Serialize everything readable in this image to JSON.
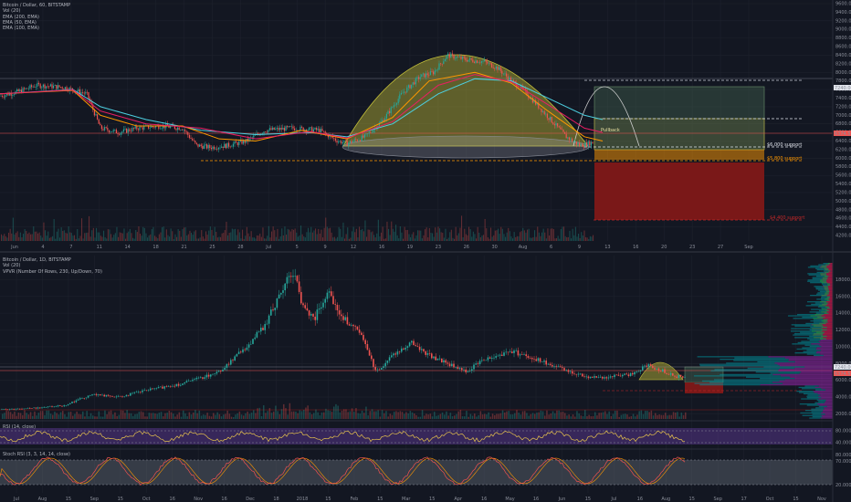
{
  "top_panel": {
    "legend": [
      "Bitcoin / Dollar, 60, BITSTAMP",
      "Vol (20)",
      "EMA (200, EMA)",
      "EMA (50, EMA)",
      "EMA (100, EMA)"
    ],
    "price_axis": [
      "9600.00",
      "9400.00",
      "9200.00",
      "9000.00",
      "8800.00",
      "8600.00",
      "8400.00",
      "8200.00",
      "8000.00",
      "7800.00",
      "7600.00",
      "7400.00",
      "7200.00",
      "7000.00",
      "6800.00",
      "6600.00",
      "6400.00",
      "6200.00",
      "6000.00",
      "5800.00",
      "5600.00",
      "5400.00",
      "5200.00",
      "5000.00",
      "4800.00",
      "4600.00",
      "4400.00",
      "4200.00"
    ],
    "price_badges": [
      "7240.00",
      "6374.53"
    ],
    "time_axis": [
      "Jun",
      "4",
      "7",
      "11",
      "14",
      "18",
      "21",
      "25",
      "28",
      "Jul",
      "5",
      "9",
      "12",
      "16",
      "19",
      "23",
      "26",
      "30",
      "Aug",
      "6",
      "9",
      "13",
      "16",
      "20",
      "23",
      "27",
      "Sep"
    ],
    "annotations": {
      "pullback": "Pullback",
      "support_6000": "$6,000 support",
      "support_5800": "$5,800 support",
      "support_4400": "$4,400 support"
    },
    "colors": {
      "ema200": "#4dd0e1",
      "ema50": "#ff9800",
      "ema100": "#e91e63",
      "support": "#ff9800",
      "stop_zone": "#8b1a1a",
      "dome": "#c8c43a"
    }
  },
  "bottom_panel": {
    "legend": [
      "Bitcoin / Dollar, 1D, BITSTAMP",
      "Vol (20)",
      "VPVR (Number Of Rows, 230, Up/Down, 70)"
    ],
    "price_axis": [
      "18000.00",
      "16000.00",
      "14000.00",
      "12000.00",
      "10000.00",
      "8000.00",
      "6000.00",
      "4000.00",
      "2000.00"
    ],
    "price_badges": [
      "7240.00",
      "6374.53"
    ],
    "time_axis": [
      "Jul",
      "Aug",
      "15",
      "Sep",
      "15",
      "Oct",
      "16",
      "Nov",
      "16",
      "Dec",
      "18",
      "2018",
      "15",
      "Feb",
      "15",
      "Mar",
      "15",
      "Apr",
      "16",
      "May",
      "16",
      "Jun",
      "15",
      "Jul",
      "16",
      "Aug",
      "15",
      "Sep",
      "17",
      "Oct",
      "15",
      "Nov"
    ]
  },
  "rsi_panel": {
    "legend": "RSI (14, close)",
    "levels": [
      "80.0000",
      "40.0000"
    ]
  },
  "stoch_panel": {
    "legend": "Stoch RSI (3, 3, 14, 14, close)",
    "levels": [
      "80.0000",
      "70.0000",
      "20.0000"
    ]
  },
  "chart_data": [
    {
      "type": "candlestick",
      "title": "Bitcoin / Dollar, 60, BITSTAMP",
      "ylim": [
        4000,
        9600
      ],
      "series": [
        {
          "name": "Price",
          "x": [
            "Jun 1",
            "Jun 4",
            "Jun 7",
            "Jun 11",
            "Jun 14",
            "Jun 18",
            "Jun 21",
            "Jun 25",
            "Jun 28",
            "Jul 1",
            "Jul 5",
            "Jul 9",
            "Jul 12",
            "Jul 16",
            "Jul 19",
            "Jul 23",
            "Jul 26",
            "Jul 30",
            "Aug 1",
            "Aug 6",
            "Aug 9",
            "Aug 13"
          ],
          "values": [
            7550,
            7650,
            7700,
            6700,
            6550,
            6700,
            6700,
            6250,
            5950,
            6350,
            6600,
            6700,
            6250,
            6600,
            7400,
            8000,
            8250,
            8200,
            7600,
            7050,
            6350,
            6370
          ]
        },
        {
          "name": "EMA (200, EMA)",
          "x": [
            "Jun 1",
            "Jun 11",
            "Jun 21",
            "Jul 1",
            "Jul 12",
            "Jul 23",
            "Aug 1",
            "Aug 9",
            "Aug 13"
          ],
          "values": [
            7500,
            7200,
            6800,
            6500,
            6500,
            7000,
            7800,
            7400,
            7000
          ]
        },
        {
          "name": "EMA (50, EMA)",
          "x": [
            "Jun 1",
            "Jun 11",
            "Jun 21",
            "Jul 1",
            "Jul 12",
            "Jul 23",
            "Aug 1",
            "Aug 9",
            "Aug 13"
          ],
          "values": [
            7500,
            6900,
            6700,
            6400,
            6300,
            7800,
            8000,
            7000,
            6500
          ]
        },
        {
          "name": "EMA (100, EMA)",
          "x": [
            "Jun 1",
            "Jun 11",
            "Jun 21",
            "Jul 1",
            "Jul 12",
            "Jul 23",
            "Aug 1",
            "Aug 9",
            "Aug 13"
          ],
          "values": [
            7500,
            7050,
            6750,
            6450,
            6400,
            7500,
            7950,
            7200,
            6700
          ]
        }
      ],
      "levels": [
        {
          "label": "$6,000 support",
          "value": 6000
        },
        {
          "label": "$5,800 support",
          "value": 5800
        },
        {
          "label": "$4,400 support",
          "value": 4400
        }
      ],
      "price_badges": [
        7240,
        6374.53
      ]
    },
    {
      "type": "candlestick",
      "title": "Bitcoin / Dollar, 1D, BITSTAMP",
      "ylim": [
        1500,
        20000
      ],
      "series": [
        {
          "name": "Price",
          "x": [
            "Jul 2017",
            "Aug",
            "Sep",
            "Oct",
            "Nov",
            "Dec",
            "Dec 18",
            "2018",
            "Feb",
            "Mar",
            "Apr",
            "May",
            "Jun",
            "Jul",
            "Aug"
          ],
          "values": [
            2500,
            2900,
            4300,
            4800,
            7000,
            11000,
            19200,
            14000,
            9000,
            10500,
            7500,
            9200,
            6500,
            6400,
            6374
          ]
        }
      ]
    },
    {
      "type": "line",
      "title": "RSI (14, close)",
      "levels": [
        80,
        40
      ]
    },
    {
      "type": "line",
      "title": "Stoch RSI (3, 3, 14, 14, close)",
      "levels": [
        80,
        70,
        20
      ]
    }
  ]
}
